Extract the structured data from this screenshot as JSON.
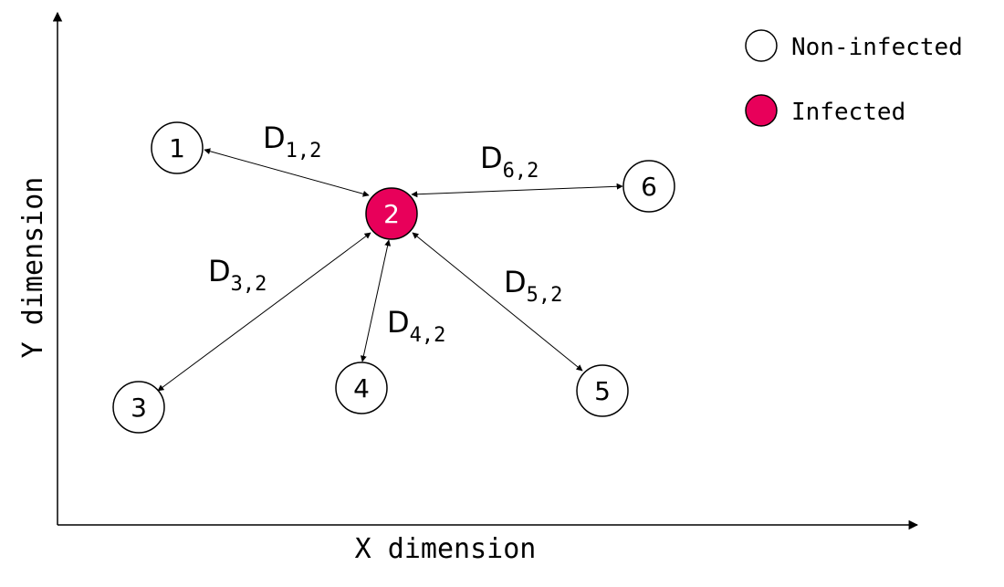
{
  "axes": {
    "x_label": "X dimension",
    "y_label": "Y dimension"
  },
  "legend": {
    "items": [
      {
        "label": "Non-infected",
        "fill": "#ffffff"
      },
      {
        "label": "Infected",
        "fill": "#e8005a"
      }
    ]
  },
  "nodes": [
    {
      "id": "1",
      "label": "1",
      "infected": false
    },
    {
      "id": "2",
      "label": "2",
      "infected": true
    },
    {
      "id": "3",
      "label": "3",
      "infected": false
    },
    {
      "id": "4",
      "label": "4",
      "infected": false
    },
    {
      "id": "5",
      "label": "5",
      "infected": false
    },
    {
      "id": "6",
      "label": "6",
      "infected": false
    }
  ],
  "edges": [
    {
      "from": "1",
      "to": "2",
      "base": "D",
      "sub": "1,2"
    },
    {
      "from": "6",
      "to": "2",
      "base": "D",
      "sub": "6,2"
    },
    {
      "from": "3",
      "to": "2",
      "base": "D",
      "sub": "3,2"
    },
    {
      "from": "4",
      "to": "2",
      "base": "D",
      "sub": "4,2"
    },
    {
      "from": "5",
      "to": "2",
      "base": "D",
      "sub": "5,2"
    }
  ],
  "colors": {
    "stroke": "#000000",
    "infected": "#e8005a",
    "non_infected": "#ffffff"
  }
}
